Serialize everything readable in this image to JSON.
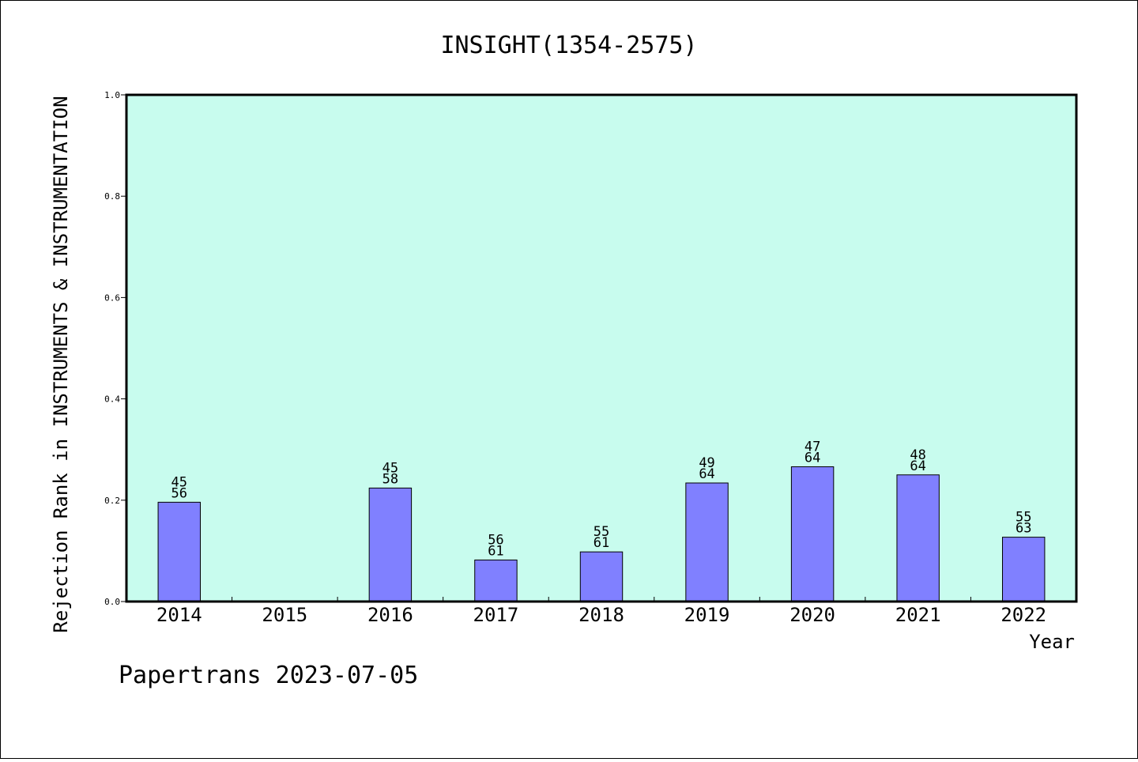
{
  "chart_data": {
    "type": "bar",
    "title": "INSIGHT(1354-2575)",
    "xlabel": "Year",
    "ylabel": "Rejection Rank in INSTRUMENTS & INSTRUMENTATION",
    "categories": [
      "2014",
      "2015",
      "2016",
      "2017",
      "2018",
      "2019",
      "2020",
      "2021",
      "2022"
    ],
    "values": [
      0.196,
      null,
      0.224,
      0.082,
      0.098,
      0.234,
      0.266,
      0.25,
      0.127
    ],
    "bar_labels": [
      [
        "45",
        "56"
      ],
      null,
      [
        "45",
        "58"
      ],
      [
        "56",
        "61"
      ],
      [
        "55",
        "61"
      ],
      [
        "49",
        "64"
      ],
      [
        "47",
        "64"
      ],
      [
        "48",
        "64"
      ],
      [
        "55",
        "63"
      ]
    ],
    "ylim": [
      0,
      1.0
    ],
    "yticks": [
      "0.0",
      "0.2",
      "0.4",
      "0.6",
      "0.8",
      "1.0"
    ],
    "grid": false,
    "colors": {
      "plot_background": "#c8fcee",
      "bar_fill": "#8080ff",
      "bar_stroke": "#000000"
    }
  },
  "footer": "Papertrans 2023-07-05"
}
